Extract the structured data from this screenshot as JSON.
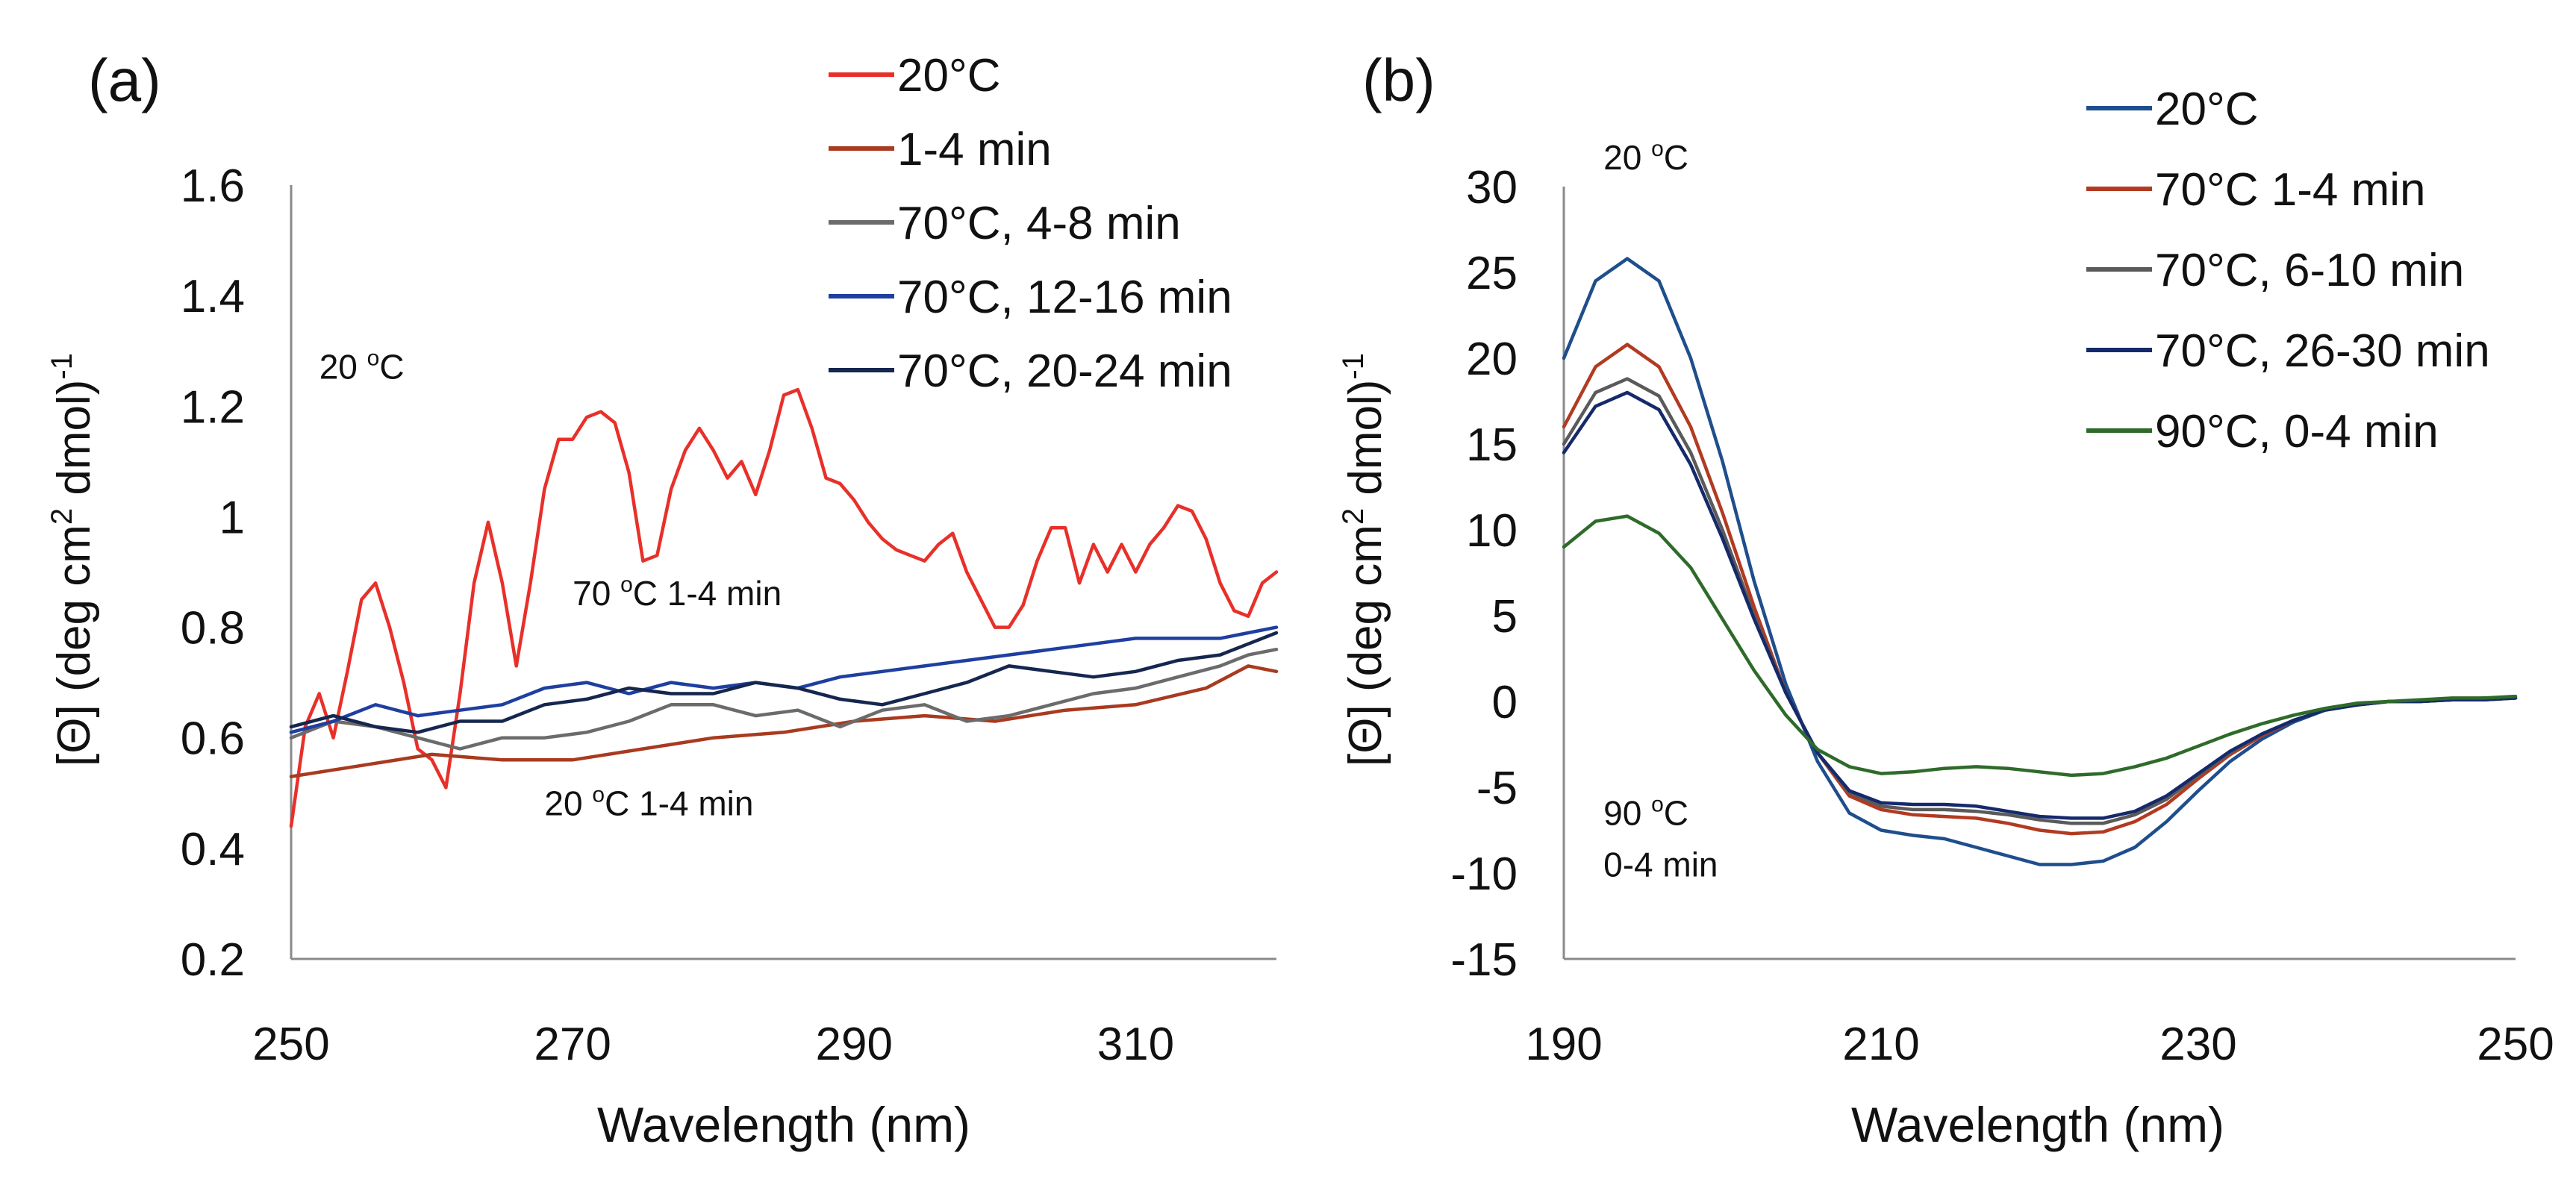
{
  "chart_data": [
    {
      "panel": "(a)",
      "type": "line",
      "title": "",
      "xlabel": "Wavelength (nm)",
      "ylabel": "[Θ] (deg cm2 dmol)-1",
      "ylabel_main": "[Θ] (deg cm",
      "ylabel_sup1": "2",
      "ylabel_mid": " dmol)",
      "ylabel_sup2": "-1",
      "xlim": [
        250,
        320
      ],
      "ylim": [
        0.2,
        1.6
      ],
      "xticks": [
        250,
        270,
        290,
        310
      ],
      "yticks": [
        0.2,
        0.4,
        0.6,
        0.8,
        1,
        1.2,
        1.4,
        1.6
      ],
      "xtick_labels": [
        "250",
        "270",
        "290",
        "310"
      ],
      "ytick_labels": [
        "0.2",
        "0.4",
        "0.6",
        "0.8",
        "1",
        "1.2",
        "1.4",
        "1.6"
      ],
      "legend_position": "top-right",
      "annotations": [
        {
          "base": "20 ",
          "sup": "o",
          "rest": "C",
          "x": 252,
          "y": 1.25
        },
        {
          "base": "70 ",
          "sup": "o",
          "rest": "C 1-4 min",
          "x": 270,
          "y": 0.84
        },
        {
          "base": "20 ",
          "sup": "o",
          "rest": "C 1-4 min",
          "x": 268,
          "y": 0.46
        }
      ],
      "series": [
        {
          "name": "20°C",
          "color": "#e8302a",
          "x": [
            250,
            251,
            252,
            253,
            254,
            255,
            256,
            257,
            258,
            259,
            260,
            261,
            262,
            263,
            264,
            265,
            266,
            267,
            268,
            269,
            270,
            271,
            272,
            273,
            274,
            275,
            276,
            277,
            278,
            279,
            280,
            281,
            282,
            283,
            284,
            285,
            286,
            287,
            288,
            289,
            290,
            291,
            292,
            293,
            294,
            295,
            296,
            297,
            298,
            299,
            300,
            301,
            302,
            303,
            304,
            305,
            306,
            307,
            308,
            309,
            310,
            311,
            312,
            313,
            314,
            315,
            316,
            317,
            318,
            319,
            320
          ],
          "y": [
            0.44,
            0.62,
            0.68,
            0.6,
            0.72,
            0.85,
            0.88,
            0.8,
            0.7,
            0.58,
            0.56,
            0.51,
            0.68,
            0.88,
            0.99,
            0.88,
            0.73,
            0.88,
            1.05,
            1.14,
            1.14,
            1.18,
            1.19,
            1.17,
            1.08,
            0.92,
            0.93,
            1.05,
            1.12,
            1.16,
            1.12,
            1.07,
            1.1,
            1.04,
            1.12,
            1.22,
            1.23,
            1.16,
            1.07,
            1.06,
            1.03,
            0.99,
            0.96,
            0.94,
            0.93,
            0.92,
            0.95,
            0.97,
            0.9,
            0.85,
            0.8,
            0.8,
            0.84,
            0.92,
            0.98,
            0.98,
            0.88,
            0.95,
            0.9,
            0.95,
            0.9,
            0.95,
            0.98,
            1.02,
            1.01,
            0.96,
            0.88,
            0.83,
            0.82,
            0.88,
            0.9
          ]
        },
        {
          "name": "1-4 min",
          "color": "#a93a1f",
          "x": [
            250,
            255,
            260,
            265,
            270,
            275,
            280,
            285,
            290,
            295,
            300,
            305,
            310,
            315,
            318,
            320
          ],
          "y": [
            0.53,
            0.55,
            0.57,
            0.56,
            0.56,
            0.58,
            0.6,
            0.61,
            0.63,
            0.64,
            0.63,
            0.65,
            0.66,
            0.69,
            0.73,
            0.72
          ]
        },
        {
          "name": "70°C, 4-8 min",
          "color": "#6b6b6b",
          "x": [
            250,
            253,
            256,
            259,
            262,
            265,
            268,
            271,
            274,
            277,
            280,
            283,
            286,
            289,
            292,
            295,
            298,
            301,
            304,
            307,
            310,
            313,
            316,
            318,
            320
          ],
          "y": [
            0.6,
            0.63,
            0.62,
            0.6,
            0.58,
            0.6,
            0.6,
            0.61,
            0.63,
            0.66,
            0.66,
            0.64,
            0.65,
            0.62,
            0.65,
            0.66,
            0.63,
            0.64,
            0.66,
            0.68,
            0.69,
            0.71,
            0.73,
            0.75,
            0.76
          ]
        },
        {
          "name": "70°C, 12-16 min",
          "color": "#1f3fa0",
          "x": [
            250,
            253,
            256,
            259,
            262,
            265,
            268,
            271,
            274,
            277,
            280,
            283,
            286,
            289,
            292,
            295,
            298,
            301,
            304,
            307,
            310,
            313,
            316,
            318,
            320
          ],
          "y": [
            0.61,
            0.63,
            0.66,
            0.64,
            0.65,
            0.66,
            0.69,
            0.7,
            0.68,
            0.7,
            0.69,
            0.7,
            0.69,
            0.71,
            0.72,
            0.73,
            0.74,
            0.75,
            0.76,
            0.77,
            0.78,
            0.78,
            0.78,
            0.79,
            0.8
          ]
        },
        {
          "name": "70°C, 20-24 min",
          "color": "#15264f",
          "x": [
            250,
            253,
            256,
            259,
            262,
            265,
            268,
            271,
            274,
            277,
            280,
            283,
            286,
            289,
            292,
            295,
            298,
            301,
            304,
            307,
            310,
            313,
            316,
            318,
            320
          ],
          "y": [
            0.62,
            0.64,
            0.62,
            0.61,
            0.63,
            0.63,
            0.66,
            0.67,
            0.69,
            0.68,
            0.68,
            0.7,
            0.69,
            0.67,
            0.66,
            0.68,
            0.7,
            0.73,
            0.72,
            0.71,
            0.72,
            0.74,
            0.75,
            0.77,
            0.79
          ]
        }
      ]
    },
    {
      "panel": "(b)",
      "type": "line",
      "title": "",
      "xlabel": "Wavelength (nm)",
      "ylabel": "[Θ] (deg cm2 dmol)-1",
      "ylabel_main": "[Θ] (deg cm",
      "ylabel_sup1": "2",
      "ylabel_mid": " dmol)",
      "ylabel_sup2": "-1",
      "xlim": [
        190,
        250
      ],
      "ylim": [
        -15,
        30
      ],
      "xticks": [
        190,
        210,
        230,
        250
      ],
      "yticks": [
        -15,
        -10,
        -5,
        0,
        5,
        10,
        15,
        20,
        25,
        30
      ],
      "xtick_labels": [
        "190",
        "210",
        "230",
        "250"
      ],
      "ytick_labels": [
        "-15",
        "-10",
        "-5",
        "0",
        "5",
        "10",
        "15",
        "20",
        "25",
        "30"
      ],
      "legend_position": "top-right",
      "annotations": [
        {
          "base": "20 ",
          "sup": "o",
          "rest": "C",
          "x": 192.5,
          "y": 31
        },
        {
          "base": "90 ",
          "sup": "o",
          "rest": "C",
          "x": 192.5,
          "y": -7.2
        },
        {
          "base": "0-4 min",
          "sup": "",
          "rest": "",
          "x": 192.5,
          "y": -10.2
        }
      ],
      "series": [
        {
          "name": "20°C",
          "color": "#1f4e8c",
          "x": [
            190,
            192,
            194,
            196,
            198,
            200,
            202,
            204,
            206,
            208,
            210,
            212,
            214,
            216,
            218,
            220,
            222,
            224,
            226,
            228,
            230,
            232,
            234,
            236,
            238,
            240,
            242,
            244,
            246,
            248,
            250
          ],
          "y": [
            20,
            24.5,
            25.8,
            24.5,
            20,
            14,
            7,
            1,
            -3.5,
            -6.5,
            -7.5,
            -7.8,
            -8,
            -8.5,
            -9,
            -9.5,
            -9.5,
            -9.3,
            -8.5,
            -7,
            -5.2,
            -3.5,
            -2.2,
            -1.2,
            -0.5,
            -0.2,
            0,
            0,
            0.1,
            0.2,
            0.2
          ]
        },
        {
          "name": "70°C 1-4 min",
          "color": "#b23a22",
          "x": [
            190,
            192,
            194,
            196,
            198,
            200,
            202,
            204,
            206,
            208,
            210,
            212,
            214,
            216,
            218,
            220,
            222,
            224,
            226,
            228,
            230,
            232,
            234,
            236,
            238,
            240,
            242,
            244,
            246,
            248,
            250
          ],
          "y": [
            16,
            19.5,
            20.8,
            19.5,
            16,
            11,
            5.5,
            0.5,
            -3,
            -5.5,
            -6.3,
            -6.6,
            -6.7,
            -6.8,
            -7.1,
            -7.5,
            -7.7,
            -7.6,
            -7,
            -6,
            -4.5,
            -3.1,
            -2,
            -1.1,
            -0.5,
            -0.2,
            0,
            0,
            0.1,
            0.1,
            0.2
          ]
        },
        {
          "name": "70°C, 6-10 min",
          "color": "#5a5a5a",
          "x": [
            190,
            192,
            194,
            196,
            198,
            200,
            202,
            204,
            206,
            208,
            210,
            212,
            214,
            216,
            218,
            220,
            222,
            224,
            226,
            228,
            230,
            232,
            234,
            236,
            238,
            240,
            242,
            244,
            246,
            248,
            250
          ],
          "y": [
            15,
            18,
            18.8,
            17.8,
            14.5,
            10,
            5,
            0.5,
            -3,
            -5.3,
            -6.1,
            -6.3,
            -6.3,
            -6.4,
            -6.6,
            -6.9,
            -7.1,
            -7.1,
            -6.6,
            -5.7,
            -4.3,
            -3,
            -1.9,
            -1.1,
            -0.5,
            -0.2,
            0,
            0,
            0.1,
            0.1,
            0.2
          ]
        },
        {
          "name": "70°C, 26-30 min",
          "color": "#152a6b",
          "x": [
            190,
            192,
            194,
            196,
            198,
            200,
            202,
            204,
            206,
            208,
            210,
            212,
            214,
            216,
            218,
            220,
            222,
            224,
            226,
            228,
            230,
            232,
            234,
            236,
            238,
            240,
            242,
            244,
            246,
            248,
            250
          ],
          "y": [
            14.5,
            17.2,
            18,
            17,
            13.8,
            9.5,
            4.8,
            0.5,
            -3,
            -5.2,
            -5.9,
            -6,
            -6,
            -6.1,
            -6.4,
            -6.7,
            -6.8,
            -6.8,
            -6.4,
            -5.5,
            -4.2,
            -2.9,
            -1.9,
            -1.1,
            -0.5,
            -0.2,
            0,
            0,
            0.1,
            0.1,
            0.2
          ]
        },
        {
          "name": "90°C, 0-4  min",
          "color": "#2e6b2a",
          "x": [
            190,
            192,
            194,
            196,
            198,
            200,
            202,
            204,
            206,
            208,
            210,
            212,
            214,
            216,
            218,
            220,
            222,
            224,
            226,
            228,
            230,
            232,
            234,
            236,
            238,
            240,
            242,
            244,
            246,
            248,
            250
          ],
          "y": [
            9,
            10.5,
            10.8,
            9.8,
            7.8,
            4.8,
            1.8,
            -0.8,
            -2.8,
            -3.8,
            -4.2,
            -4.1,
            -3.9,
            -3.8,
            -3.9,
            -4.1,
            -4.3,
            -4.2,
            -3.8,
            -3.3,
            -2.6,
            -1.9,
            -1.3,
            -0.8,
            -0.4,
            -0.1,
            0,
            0.1,
            0.2,
            0.2,
            0.3
          ]
        }
      ]
    }
  ]
}
